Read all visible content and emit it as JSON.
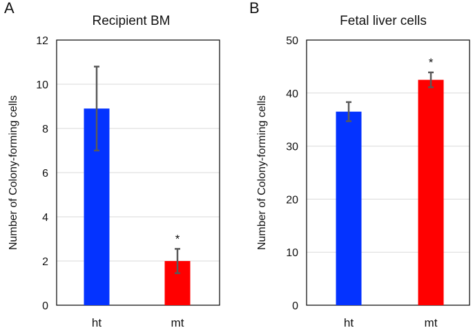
{
  "chart_data": [
    {
      "type": "bar",
      "panel_label": "A",
      "title": "Recipient BM",
      "xlabel": "",
      "ylabel": "Number of Colony-forming cells",
      "ylim": [
        0,
        12
      ],
      "yticks": [
        0,
        2,
        4,
        6,
        8,
        10,
        12
      ],
      "grid": true,
      "categories": [
        "ht",
        "mt"
      ],
      "values": [
        8.9,
        2.0
      ],
      "errors": [
        1.9,
        0.55
      ],
      "colors": [
        "#0433ff",
        "#ff0000"
      ],
      "annotations": [
        "",
        "*"
      ]
    },
    {
      "type": "bar",
      "panel_label": "B",
      "title": "Fetal liver cells",
      "xlabel": "",
      "ylabel": "Number of Colony-forming cells",
      "ylim": [
        0,
        50
      ],
      "yticks": [
        0,
        10,
        20,
        30,
        40,
        50
      ],
      "grid": true,
      "categories": [
        "ht",
        "mt"
      ],
      "values": [
        36.5,
        42.5
      ],
      "errors": [
        1.8,
        1.4
      ],
      "colors": [
        "#0433ff",
        "#ff0000"
      ],
      "annotations": [
        "",
        "*"
      ]
    }
  ]
}
